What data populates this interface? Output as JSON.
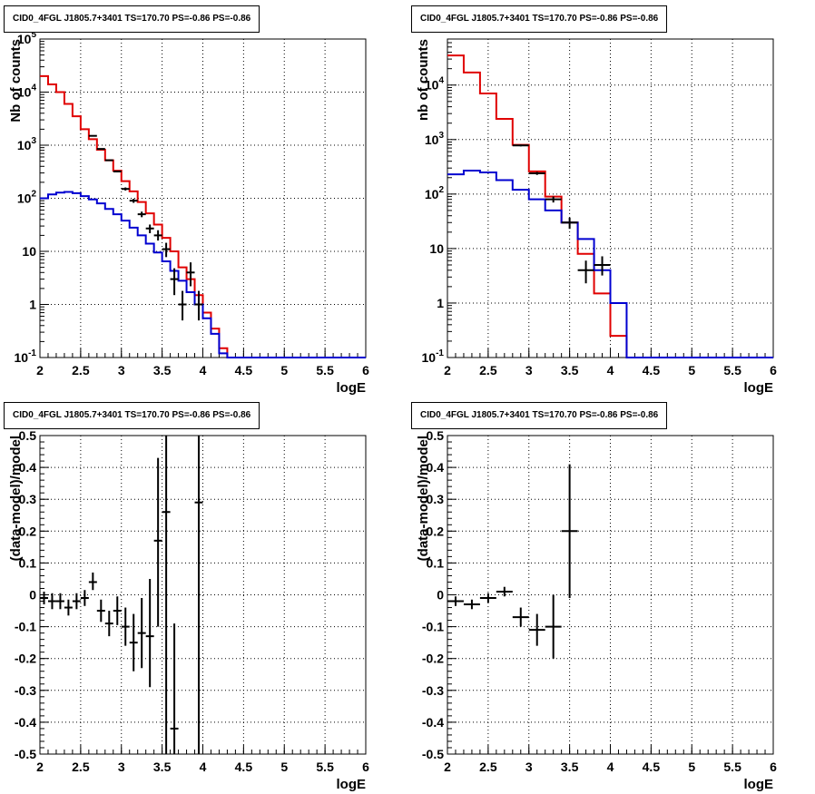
{
  "chart_data": [
    {
      "id": "tl",
      "type": "line",
      "title": "CID0_4FGL J1805.7+3401 TS=170.70 PS=-0.86 PS=-0.86",
      "xlabel": "logE",
      "ylabel": "Nb of counts",
      "xlim": [
        2,
        6
      ],
      "ylim": [
        0.1,
        100000
      ],
      "yscale": "log",
      "grid": true,
      "xticks": [
        "2",
        "2.5",
        "3",
        "3.5",
        "4",
        "4.5",
        "5",
        "5.5",
        "6"
      ],
      "yticks": [
        {
          "v": 0.1,
          "label": "10^-1"
        },
        {
          "v": 1,
          "label": "1"
        },
        {
          "v": 10,
          "label": "10"
        },
        {
          "v": 100,
          "label": "10^2"
        },
        {
          "v": 1000,
          "label": "10^3"
        },
        {
          "v": 10000,
          "label": "10^4"
        },
        {
          "v": 100000,
          "label": "10^5"
        }
      ],
      "bin_width": 0.1,
      "series": [
        {
          "color": "#e00000",
          "style": "step",
          "x": [
            2.0,
            2.1,
            2.2,
            2.3,
            2.4,
            2.5,
            2.6,
            2.7,
            2.8,
            2.9,
            3.0,
            3.1,
            3.2,
            3.3,
            3.4,
            3.5,
            3.6,
            3.7,
            3.8,
            3.9,
            4.0,
            4.1,
            4.2,
            4.3,
            4.4,
            4.5,
            4.6,
            4.7,
            4.8,
            4.9,
            5.0,
            5.1,
            5.2,
            5.3,
            5.4,
            5.5,
            5.6,
            5.7,
            5.8,
            5.9
          ],
          "values": [
            20000,
            14000,
            10000,
            6000,
            3500,
            2000,
            1300,
            820,
            520,
            330,
            210,
            135,
            85,
            52,
            32,
            18,
            10,
            5,
            3,
            1.5,
            0.7,
            0.35,
            0.15,
            0.1,
            0.1,
            0.1,
            0.1,
            0.1,
            0.1,
            0.1,
            0.1,
            0.1,
            0.1,
            0.1,
            0.1,
            0.1,
            0.1,
            0.1,
            0.1,
            0.1
          ]
        },
        {
          "color": "#0000d0",
          "style": "step",
          "x": [
            2.0,
            2.1,
            2.2,
            2.3,
            2.4,
            2.5,
            2.6,
            2.7,
            2.8,
            2.9,
            3.0,
            3.1,
            3.2,
            3.3,
            3.4,
            3.5,
            3.6,
            3.7,
            3.8,
            3.9,
            4.0,
            4.1,
            4.2,
            4.3,
            4.4,
            4.5,
            4.6,
            4.7,
            4.8,
            4.9,
            5.0,
            5.1,
            5.2,
            5.3,
            5.4,
            5.5,
            5.6,
            5.7,
            5.8,
            5.9
          ],
          "values": [
            100,
            118,
            128,
            132,
            125,
            110,
            95,
            80,
            63,
            50,
            38,
            28,
            20,
            14,
            9.5,
            6.5,
            4.3,
            2.8,
            1.7,
            1.0,
            0.55,
            0.28,
            0.12,
            0.1,
            0.1,
            0.1,
            0.1,
            0.1,
            0.1,
            0.1,
            0.1,
            0.1,
            0.1,
            0.1,
            0.1,
            0.1,
            0.1,
            0.1,
            0.1,
            0.1
          ]
        },
        {
          "color": "#000000",
          "style": "errorbar",
          "x": [
            2.65,
            2.75,
            2.85,
            2.95,
            3.05,
            3.15,
            3.25,
            3.35,
            3.45,
            3.55,
            3.65,
            3.75,
            3.85,
            3.95
          ],
          "values": [
            1500,
            850,
            520,
            320,
            150,
            90,
            50,
            27,
            20,
            11,
            3,
            1,
            4,
            1
          ],
          "err_lo": [
            1460,
            830,
            505,
            310,
            140,
            82,
            44,
            22,
            16,
            7.8,
            1.5,
            0.5,
            2.2,
            0.5
          ],
          "err_hi": [
            1540,
            870,
            535,
            330,
            160,
            98,
            56,
            32,
            25,
            14.5,
            4.8,
            1.8,
            6.2,
            1.8
          ]
        }
      ]
    },
    {
      "id": "tr",
      "type": "line",
      "title": "CID0_4FGL J1805.7+3401 TS=170.70 PS=-0.86 PS=-0.86",
      "xlabel": "logE",
      "ylabel": "nb of counts",
      "xlim": [
        2,
        6
      ],
      "ylim": [
        0.1,
        70000
      ],
      "yscale": "log",
      "grid": true,
      "xticks": [
        "2",
        "2.5",
        "3",
        "3.5",
        "4",
        "4.5",
        "5",
        "5.5",
        "6"
      ],
      "yticks": [
        {
          "v": 0.1,
          "label": "10^-1"
        },
        {
          "v": 1,
          "label": "1"
        },
        {
          "v": 10,
          "label": "10"
        },
        {
          "v": 100,
          "label": "10^2"
        },
        {
          "v": 1000,
          "label": "10^3"
        },
        {
          "v": 10000,
          "label": "10^4"
        }
      ],
      "bin_width": 0.2,
      "series": [
        {
          "color": "#e00000",
          "style": "step",
          "x": [
            2.0,
            2.2,
            2.4,
            2.6,
            2.8,
            3.0,
            3.2,
            3.4,
            3.6,
            3.8,
            4.0,
            4.2,
            4.4,
            4.6,
            4.8,
            5.0,
            5.2,
            5.4,
            5.6,
            5.8
          ],
          "values": [
            35000,
            17000,
            7000,
            2400,
            800,
            260,
            90,
            30,
            8,
            1.5,
            0.25,
            0.1,
            0.1,
            0.1,
            0.1,
            0.1,
            0.1,
            0.1,
            0.1,
            0.1
          ]
        },
        {
          "color": "#0000d0",
          "style": "step",
          "x": [
            2.0,
            2.2,
            2.4,
            2.6,
            2.8,
            3.0,
            3.2,
            3.4,
            3.6,
            3.8,
            4.0,
            4.2,
            4.4,
            4.6,
            4.8,
            5.0,
            5.2,
            5.4,
            5.6,
            5.8
          ],
          "values": [
            230,
            270,
            250,
            180,
            120,
            80,
            50,
            30,
            15,
            4,
            1,
            0.1,
            0.1,
            0.1,
            0.1,
            0.1,
            0.1,
            0.1,
            0.1,
            0.1
          ]
        },
        {
          "color": "#000000",
          "style": "errorbar",
          "x": [
            2.9,
            3.1,
            3.3,
            3.5,
            3.7,
            3.9
          ],
          "values": [
            780,
            240,
            80,
            30,
            4,
            5
          ],
          "err_lo": [
            750,
            225,
            70,
            23,
            2.3,
            3.2
          ],
          "err_hi": [
            810,
            255,
            90,
            37,
            6,
            7.2
          ]
        }
      ]
    },
    {
      "id": "bl",
      "type": "scatter",
      "title": "CID0_4FGL J1805.7+3401 TS=170.70 PS=-0.86 PS=-0.86",
      "xlabel": "logE",
      "ylabel": "(data-model)/model",
      "xlim": [
        2,
        6
      ],
      "ylim": [
        -0.5,
        0.5
      ],
      "yscale": "linear",
      "grid": true,
      "xticks": [
        "2",
        "2.5",
        "3",
        "3.5",
        "4",
        "4.5",
        "5",
        "5.5",
        "6"
      ],
      "yticks": [
        {
          "v": -0.5,
          "label": "-0.5"
        },
        {
          "v": -0.4,
          "label": "-0.4"
        },
        {
          "v": -0.3,
          "label": "-0.3"
        },
        {
          "v": -0.2,
          "label": "-0.2"
        },
        {
          "v": -0.1,
          "label": "-0.1"
        },
        {
          "v": 0,
          "label": "0"
        },
        {
          "v": 0.1,
          "label": "0.1"
        },
        {
          "v": 0.2,
          "label": "0.2"
        },
        {
          "v": 0.3,
          "label": "0.3"
        },
        {
          "v": 0.4,
          "label": "0.4"
        },
        {
          "v": 0.5,
          "label": "0.5"
        }
      ],
      "bin_width": 0.1,
      "series": [
        {
          "color": "#000000",
          "style": "errorbar",
          "x": [
            2.05,
            2.15,
            2.25,
            2.35,
            2.45,
            2.55,
            2.65,
            2.75,
            2.85,
            2.95,
            3.05,
            3.15,
            3.25,
            3.35,
            3.45,
            3.55,
            3.65,
            3.95
          ],
          "values": [
            -0.01,
            -0.02,
            -0.02,
            -0.04,
            -0.02,
            -0.01,
            0.04,
            -0.05,
            -0.09,
            -0.05,
            -0.1,
            -0.15,
            -0.12,
            -0.13,
            0.17,
            0.26,
            -0.42,
            0.29
          ],
          "err_lo": [
            -0.03,
            -0.045,
            -0.045,
            -0.065,
            -0.045,
            -0.035,
            0.015,
            -0.085,
            -0.13,
            -0.095,
            -0.16,
            -0.24,
            -0.23,
            -0.29,
            -0.1,
            -0.5,
            -0.5,
            -0.5
          ],
          "err_hi": [
            0.01,
            0.005,
            0.005,
            -0.015,
            0.005,
            0.015,
            0.07,
            -0.015,
            -0.05,
            -0.005,
            -0.04,
            -0.06,
            -0.01,
            0.05,
            0.43,
            0.5,
            -0.09,
            0.5
          ]
        }
      ]
    },
    {
      "id": "br",
      "type": "scatter",
      "title": "CID0_4FGL J1805.7+3401 TS=170.70 PS=-0.86 PS=-0.86",
      "xlabel": "logE",
      "ylabel": "(data-model)/model",
      "xlim": [
        2,
        6
      ],
      "ylim": [
        -0.5,
        0.5
      ],
      "yscale": "linear",
      "grid": true,
      "xticks": [
        "2",
        "2.5",
        "3",
        "3.5",
        "4",
        "4.5",
        "5",
        "5.5",
        "6"
      ],
      "yticks": [
        {
          "v": -0.5,
          "label": "-0.5"
        },
        {
          "v": -0.4,
          "label": "-0.4"
        },
        {
          "v": -0.3,
          "label": "-0.3"
        },
        {
          "v": -0.2,
          "label": "-0.2"
        },
        {
          "v": -0.1,
          "label": "-0.1"
        },
        {
          "v": 0,
          "label": "0"
        },
        {
          "v": 0.1,
          "label": "0.1"
        },
        {
          "v": 0.2,
          "label": "0.2"
        },
        {
          "v": 0.3,
          "label": "0.3"
        },
        {
          "v": 0.4,
          "label": "0.4"
        },
        {
          "v": 0.5,
          "label": "0.5"
        }
      ],
      "bin_width": 0.2,
      "series": [
        {
          "color": "#000000",
          "style": "errorbar",
          "x": [
            2.1,
            2.3,
            2.5,
            2.7,
            2.9,
            3.1,
            3.3,
            3.5
          ],
          "values": [
            -0.02,
            -0.03,
            -0.01,
            0.01,
            -0.07,
            -0.11,
            -0.1,
            0.2
          ],
          "err_lo": [
            -0.035,
            -0.045,
            -0.025,
            -0.005,
            -0.1,
            -0.16,
            -0.2,
            -0.01
          ],
          "err_hi": [
            -0.005,
            -0.015,
            0.005,
            0.025,
            -0.04,
            -0.06,
            0.0,
            0.41
          ]
        }
      ]
    }
  ]
}
